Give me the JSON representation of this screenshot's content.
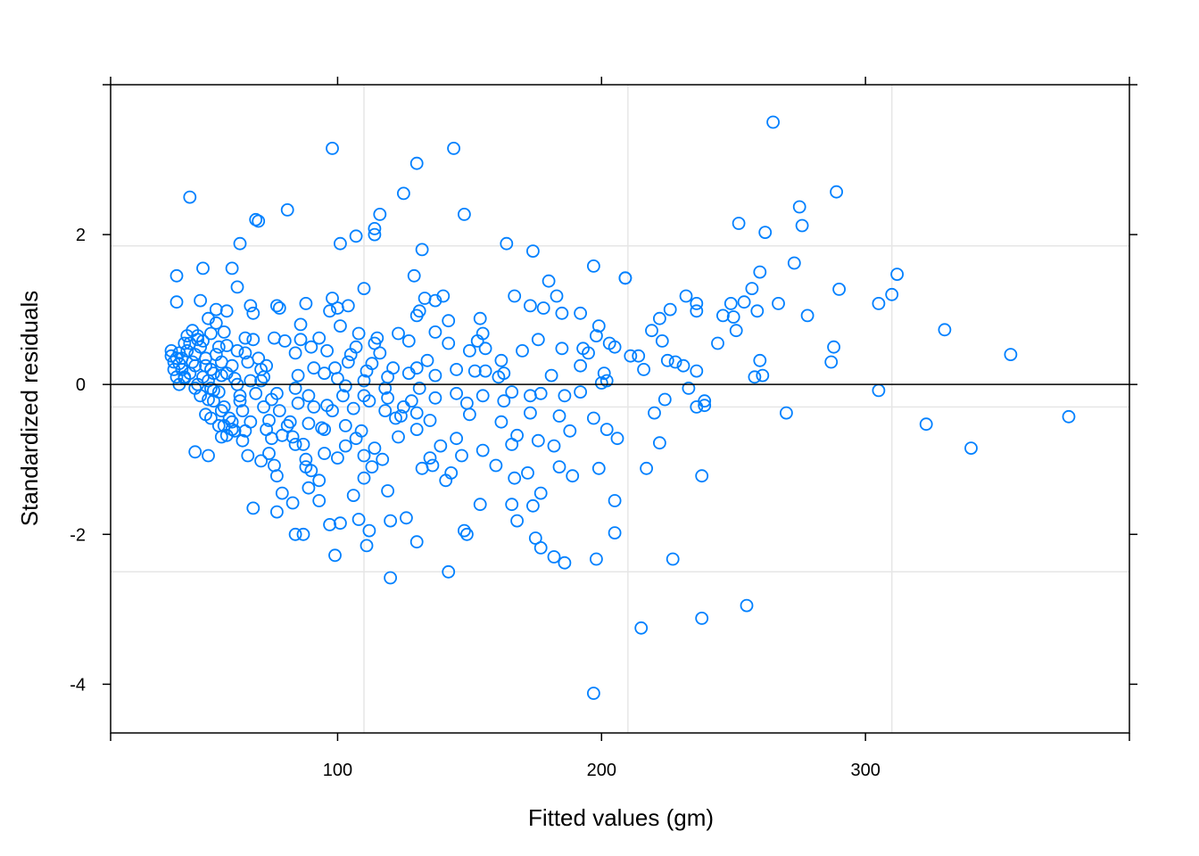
{
  "chart_data": {
    "type": "scatter",
    "title": "",
    "xlabel": "Fitted values (gm)",
    "ylabel": "Standardized residuals",
    "xlim": [
      14,
      400
    ],
    "ylim": [
      -4.65,
      4.0
    ],
    "x_ticks": [
      100,
      200,
      300
    ],
    "x_tick_labels": [
      "100",
      "200",
      "300"
    ],
    "y_ticks": [
      -4,
      -2,
      0,
      2
    ],
    "y_tick_labels": [
      "-4",
      "-2",
      "0",
      "2"
    ],
    "reference_line_y": 0,
    "grid": true,
    "grid_x": [
      110,
      210,
      310
    ],
    "grid_y": [
      -2.5,
      -0.3,
      1.85
    ],
    "colors": {
      "points": "#0080ff",
      "reference": "#000000",
      "grid": "#e6e6e6",
      "frame": "#000000"
    },
    "points": [
      [
        265,
        3.5
      ],
      [
        98,
        3.15
      ],
      [
        144,
        3.15
      ],
      [
        130,
        2.95
      ],
      [
        289,
        2.57
      ],
      [
        125,
        2.55
      ],
      [
        44,
        2.5
      ],
      [
        81,
        2.33
      ],
      [
        275,
        2.37
      ],
      [
        148,
        2.27
      ],
      [
        116,
        2.27
      ],
      [
        69,
        2.2
      ],
      [
        70,
        2.18
      ],
      [
        252,
        2.15
      ],
      [
        276,
        2.12
      ],
      [
        114,
        2.08
      ],
      [
        262,
        2.03
      ],
      [
        107,
        1.98
      ],
      [
        114,
        2.0
      ],
      [
        101,
        1.88
      ],
      [
        63,
        1.88
      ],
      [
        164,
        1.88
      ],
      [
        132,
        1.8
      ],
      [
        174,
        1.78
      ],
      [
        273,
        1.62
      ],
      [
        197,
        1.58
      ],
      [
        49,
        1.55
      ],
      [
        60,
        1.55
      ],
      [
        260,
        1.5
      ],
      [
        312,
        1.47
      ],
      [
        39,
        1.45
      ],
      [
        129,
        1.45
      ],
      [
        209,
        1.42
      ],
      [
        209,
        1.42
      ],
      [
        180,
        1.38
      ],
      [
        290,
        1.27
      ],
      [
        62,
        1.3
      ],
      [
        110,
        1.28
      ],
      [
        257,
        1.28
      ],
      [
        310,
        1.2
      ],
      [
        167,
        1.18
      ],
      [
        232,
        1.18
      ],
      [
        183,
        1.18
      ],
      [
        140,
        1.18
      ],
      [
        98,
        1.15
      ],
      [
        133,
        1.15
      ],
      [
        137,
        1.12
      ],
      [
        48,
        1.12
      ],
      [
        39,
        1.1
      ],
      [
        88,
        1.08
      ],
      [
        236,
        1.08
      ],
      [
        77,
        1.05
      ],
      [
        305,
        1.08
      ],
      [
        267,
        1.08
      ],
      [
        78,
        1.02
      ],
      [
        67,
        1.05
      ],
      [
        178,
        1.02
      ],
      [
        173,
        1.05
      ],
      [
        100,
        1.02
      ],
      [
        54,
        1.0
      ],
      [
        104,
        1.05
      ],
      [
        226,
        1.0
      ],
      [
        249,
        1.08
      ],
      [
        254,
        1.1
      ],
      [
        236,
        0.98
      ],
      [
        185,
        0.95
      ],
      [
        131,
        0.98
      ],
      [
        259,
        0.98
      ],
      [
        192,
        0.95
      ],
      [
        278,
        0.92
      ],
      [
        58,
        0.98
      ],
      [
        97,
        0.98
      ],
      [
        130,
        0.92
      ],
      [
        246,
        0.92
      ],
      [
        222,
        0.88
      ],
      [
        51,
        0.88
      ],
      [
        154,
        0.88
      ],
      [
        250,
        0.9
      ],
      [
        142,
        0.85
      ],
      [
        68,
        0.95
      ],
      [
        54,
        0.82
      ],
      [
        86,
        0.8
      ],
      [
        199,
        0.78
      ],
      [
        101,
        0.78
      ],
      [
        45,
        0.72
      ],
      [
        251,
        0.72
      ],
      [
        330,
        0.73
      ],
      [
        137,
        0.7
      ],
      [
        123,
        0.68
      ],
      [
        155,
        0.68
      ],
      [
        108,
        0.68
      ],
      [
        43,
        0.65
      ],
      [
        219,
        0.72
      ],
      [
        65,
        0.62
      ],
      [
        93,
        0.62
      ],
      [
        198,
        0.65
      ],
      [
        76,
        0.62
      ],
      [
        86,
        0.6
      ],
      [
        115,
        0.62
      ],
      [
        127,
        0.58
      ],
      [
        153,
        0.58
      ],
      [
        203,
        0.55
      ],
      [
        142,
        0.55
      ],
      [
        49,
        0.58
      ],
      [
        176,
        0.6
      ],
      [
        244,
        0.55
      ],
      [
        80,
        0.58
      ],
      [
        114,
        0.55
      ],
      [
        223,
        0.58
      ],
      [
        37,
        0.45
      ],
      [
        193,
        0.48
      ],
      [
        288,
        0.5
      ],
      [
        58,
        0.52
      ],
      [
        90,
        0.5
      ],
      [
        156,
        0.48
      ],
      [
        185,
        0.48
      ],
      [
        205,
        0.5
      ],
      [
        170,
        0.45
      ],
      [
        37,
        0.38
      ],
      [
        84,
        0.42
      ],
      [
        150,
        0.45
      ],
      [
        211,
        0.38
      ],
      [
        355,
        0.4
      ],
      [
        195,
        0.42
      ],
      [
        38,
        0.3
      ],
      [
        65,
        0.42
      ],
      [
        105,
        0.4
      ],
      [
        46,
        0.4
      ],
      [
        225,
        0.32
      ],
      [
        134,
        0.32
      ],
      [
        162,
        0.32
      ],
      [
        228,
        0.3
      ],
      [
        287,
        0.3
      ],
      [
        260,
        0.32
      ],
      [
        214,
        0.38
      ],
      [
        39,
        0.35
      ],
      [
        40,
        0.28
      ],
      [
        231,
        0.25
      ],
      [
        192,
        0.25
      ],
      [
        50,
        0.25
      ],
      [
        73,
        0.25
      ],
      [
        91,
        0.22
      ],
      [
        130,
        0.22
      ],
      [
        156,
        0.18
      ],
      [
        163,
        0.15
      ],
      [
        145,
        0.2
      ],
      [
        236,
        0.18
      ],
      [
        216,
        0.2
      ],
      [
        258,
        0.1
      ],
      [
        41,
        0.2
      ],
      [
        111,
        0.18
      ],
      [
        71,
        0.2
      ],
      [
        201,
        0.15
      ],
      [
        42,
        0.1
      ],
      [
        56,
        0.12
      ],
      [
        127,
        0.15
      ],
      [
        85,
        0.12
      ],
      [
        137,
        0.12
      ],
      [
        152,
        0.18
      ],
      [
        95,
        0.15
      ],
      [
        61,
        0.08
      ],
      [
        161,
        0.1
      ],
      [
        261,
        0.12
      ],
      [
        181,
        0.12
      ],
      [
        40,
        0.0
      ],
      [
        51,
        0.05
      ],
      [
        42,
        0.08
      ],
      [
        67,
        0.05
      ],
      [
        100,
        0.08
      ],
      [
        119,
        0.1
      ],
      [
        202,
        0.05
      ],
      [
        62,
        0.0
      ],
      [
        200,
        0.02
      ],
      [
        233,
        -0.05
      ],
      [
        305,
        -0.08
      ],
      [
        46,
        -0.05
      ],
      [
        47,
        0.0
      ],
      [
        53,
        -0.08
      ],
      [
        84,
        -0.05
      ],
      [
        103,
        -0.02
      ],
      [
        131,
        -0.05
      ],
      [
        166,
        -0.1
      ],
      [
        145,
        -0.12
      ],
      [
        177,
        -0.12
      ],
      [
        192,
        -0.1
      ],
      [
        48,
        -0.15
      ],
      [
        69,
        -0.12
      ],
      [
        77,
        -0.12
      ],
      [
        89,
        -0.15
      ],
      [
        110,
        -0.15
      ],
      [
        119,
        -0.18
      ],
      [
        137,
        -0.18
      ],
      [
        155,
        -0.15
      ],
      [
        173,
        -0.15
      ],
      [
        186,
        -0.15
      ],
      [
        53,
        -0.22
      ],
      [
        63,
        -0.22
      ],
      [
        85,
        -0.25
      ],
      [
        96,
        -0.28
      ],
      [
        112,
        -0.22
      ],
      [
        125,
        -0.3
      ],
      [
        149,
        -0.25
      ],
      [
        163,
        -0.22
      ],
      [
        224,
        -0.2
      ],
      [
        239,
        -0.22
      ],
      [
        56,
        -0.35
      ],
      [
        72,
        -0.3
      ],
      [
        98,
        -0.35
      ],
      [
        106,
        -0.32
      ],
      [
        118,
        -0.35
      ],
      [
        130,
        -0.38
      ],
      [
        150,
        -0.4
      ],
      [
        173,
        -0.38
      ],
      [
        184,
        -0.42
      ],
      [
        220,
        -0.38
      ],
      [
        270,
        -0.38
      ],
      [
        377,
        -0.43
      ],
      [
        52,
        -0.45
      ],
      [
        74,
        -0.48
      ],
      [
        82,
        -0.5
      ],
      [
        89,
        -0.52
      ],
      [
        103,
        -0.55
      ],
      [
        122,
        -0.45
      ],
      [
        135,
        -0.48
      ],
      [
        162,
        -0.5
      ],
      [
        197,
        -0.45
      ],
      [
        323,
        -0.53
      ],
      [
        55,
        -0.55
      ],
      [
        60,
        -0.6
      ],
      [
        65,
        -0.62
      ],
      [
        79,
        -0.68
      ],
      [
        94,
        -0.58
      ],
      [
        109,
        -0.62
      ],
      [
        130,
        -0.6
      ],
      [
        168,
        -0.68
      ],
      [
        188,
        -0.62
      ],
      [
        202,
        -0.6
      ],
      [
        56,
        -0.7
      ],
      [
        64,
        -0.75
      ],
      [
        75,
        -0.72
      ],
      [
        83,
        -0.7
      ],
      [
        107,
        -0.72
      ],
      [
        123,
        -0.7
      ],
      [
        145,
        -0.72
      ],
      [
        166,
        -0.8
      ],
      [
        176,
        -0.75
      ],
      [
        206,
        -0.72
      ],
      [
        222,
        -0.78
      ],
      [
        87,
        -0.8
      ],
      [
        103,
        -0.82
      ],
      [
        114,
        -0.85
      ],
      [
        139,
        -0.82
      ],
      [
        155,
        -0.88
      ],
      [
        182,
        -0.82
      ],
      [
        239,
        -0.28
      ],
      [
        236,
        -0.3
      ],
      [
        340,
        -0.85
      ],
      [
        46,
        -0.9
      ],
      [
        51,
        -0.95
      ],
      [
        66,
        -0.95
      ],
      [
        74,
        -0.92
      ],
      [
        95,
        -0.92
      ],
      [
        110,
        -0.95
      ],
      [
        135,
        -0.98
      ],
      [
        147,
        -0.95
      ],
      [
        57,
        -0.55
      ],
      [
        71,
        -1.02
      ],
      [
        88,
        -1.0
      ],
      [
        100,
        -0.98
      ],
      [
        117,
        -1.0
      ],
      [
        136,
        -1.08
      ],
      [
        160,
        -1.08
      ],
      [
        184,
        -1.1
      ],
      [
        199,
        -1.12
      ],
      [
        217,
        -1.12
      ],
      [
        76,
        -1.08
      ],
      [
        90,
        -1.15
      ],
      [
        113,
        -1.1
      ],
      [
        132,
        -1.12
      ],
      [
        143,
        -1.18
      ],
      [
        172,
        -1.18
      ],
      [
        189,
        -1.22
      ],
      [
        77,
        -1.22
      ],
      [
        93,
        -1.28
      ],
      [
        110,
        -1.25
      ],
      [
        141,
        -1.28
      ],
      [
        167,
        -1.25
      ],
      [
        238,
        -1.22
      ],
      [
        79,
        -1.45
      ],
      [
        89,
        -1.38
      ],
      [
        106,
        -1.48
      ],
      [
        119,
        -1.42
      ],
      [
        177,
        -1.45
      ],
      [
        93,
        -1.55
      ],
      [
        83,
        -1.58
      ],
      [
        154,
        -1.6
      ],
      [
        166,
        -1.6
      ],
      [
        174,
        -1.62
      ],
      [
        205,
        -1.55
      ],
      [
        68,
        -1.65
      ],
      [
        77,
        -1.7
      ],
      [
        97,
        -1.87
      ],
      [
        108,
        -1.8
      ],
      [
        120,
        -1.82
      ],
      [
        126,
        -1.78
      ],
      [
        168,
        -1.82
      ],
      [
        101,
        -1.85
      ],
      [
        112,
        -1.95
      ],
      [
        148,
        -1.95
      ],
      [
        149,
        -2.0
      ],
      [
        205,
        -1.98
      ],
      [
        84,
        -2.0
      ],
      [
        87,
        -2.0
      ],
      [
        130,
        -2.1
      ],
      [
        175,
        -2.05
      ],
      [
        111,
        -2.15
      ],
      [
        177,
        -2.18
      ],
      [
        182,
        -2.3
      ],
      [
        186,
        -2.38
      ],
      [
        99,
        -2.28
      ],
      [
        198,
        -2.33
      ],
      [
        227,
        -2.33
      ],
      [
        142,
        -2.5
      ],
      [
        120,
        -2.58
      ],
      [
        255,
        -2.95
      ],
      [
        238,
        -3.12
      ],
      [
        215,
        -3.25
      ],
      [
        197,
        -4.12
      ],
      [
        44,
        0.55
      ],
      [
        47,
        0.6
      ],
      [
        52,
        0.68
      ],
      [
        38,
        0.2
      ],
      [
        41,
        0.35
      ],
      [
        43,
        0.45
      ],
      [
        45,
        0.3
      ],
      [
        48,
        0.5
      ],
      [
        50,
        0.35
      ],
      [
        52,
        0.2
      ],
      [
        54,
        0.4
      ],
      [
        56,
        0.3
      ],
      [
        58,
        0.15
      ],
      [
        60,
        0.25
      ],
      [
        44,
        0.15
      ],
      [
        46,
        0.25
      ],
      [
        49,
        0.1
      ],
      [
        51,
        -0.2
      ],
      [
        53,
        0.15
      ],
      [
        55,
        -0.1
      ],
      [
        57,
        -0.3
      ],
      [
        59,
        -0.45
      ],
      [
        61,
        -0.62
      ],
      [
        50,
        -0.4
      ],
      [
        52,
        -0.05
      ],
      [
        55,
        0.5
      ],
      [
        47,
        0.65
      ],
      [
        42,
        0.55
      ],
      [
        39,
        0.1
      ],
      [
        40,
        0.42
      ],
      [
        57,
        0.7
      ],
      [
        62,
        0.45
      ],
      [
        66,
        0.3
      ],
      [
        70,
        0.35
      ],
      [
        72,
        0.1
      ],
      [
        75,
        -0.2
      ],
      [
        78,
        -0.35
      ],
      [
        81,
        -0.55
      ],
      [
        84,
        -0.8
      ],
      [
        88,
        -1.1
      ],
      [
        91,
        -0.3
      ],
      [
        95,
        -0.6
      ],
      [
        68,
        0.6
      ],
      [
        71,
        0.05
      ],
      [
        64,
        -0.35
      ],
      [
        67,
        -0.5
      ],
      [
        73,
        -0.6
      ],
      [
        58,
        -0.68
      ],
      [
        60,
        -0.5
      ],
      [
        63,
        -0.15
      ],
      [
        96,
        0.45
      ],
      [
        99,
        0.22
      ],
      [
        102,
        -0.15
      ],
      [
        104,
        0.3
      ],
      [
        107,
        0.5
      ],
      [
        110,
        0.05
      ],
      [
        113,
        0.28
      ],
      [
        116,
        0.42
      ],
      [
        118,
        -0.05
      ],
      [
        121,
        0.22
      ],
      [
        124,
        -0.42
      ],
      [
        128,
        -0.22
      ]
    ]
  }
}
